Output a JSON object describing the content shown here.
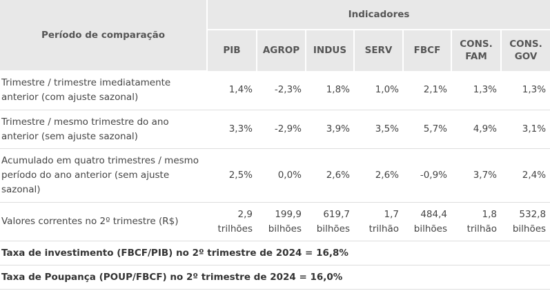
{
  "header": {
    "period_label": "Período de comparação",
    "indicators_label": "Indicadores",
    "columns": [
      [
        "PIB"
      ],
      [
        "AGROP"
      ],
      [
        "INDUS"
      ],
      [
        "SERV"
      ],
      [
        "FBCF"
      ],
      [
        "CONS.",
        "FAM"
      ],
      [
        "CONS.",
        "GOV"
      ]
    ]
  },
  "rows": [
    {
      "label": "Trimestre / trimestre imediatamente anterior (com ajuste sazonal)",
      "values": [
        "1,4%",
        "-2,3%",
        "1,8%",
        "1,0%",
        "2,1%",
        "1,3%",
        "1,3%"
      ]
    },
    {
      "label": "Trimestre / mesmo trimestre do ano anterior (sem ajuste sazonal)",
      "values": [
        "3,3%",
        "-2,9%",
        "3,9%",
        "3,5%",
        "5,7%",
        "4,9%",
        "3,1%"
      ]
    },
    {
      "label": "Acumulado em quatro trimestres / mesmo período do ano anterior (sem ajuste sazonal)",
      "values": [
        "2,5%",
        "0,0%",
        "2,6%",
        "2,6%",
        "-0,9%",
        "3,7%",
        "2,4%"
      ]
    },
    {
      "label": "Valores correntes no 2º trimestre (R$)",
      "values": [
        [
          "2,9",
          "trilhões"
        ],
        [
          "199,9",
          "bilhões"
        ],
        [
          "619,7",
          "bilhões"
        ],
        [
          "1,7",
          "trilhão"
        ],
        [
          "484,4",
          "bilhões"
        ],
        [
          "1,8",
          "trilhão"
        ],
        [
          "532,8",
          "bilhões"
        ]
      ]
    }
  ],
  "footer": {
    "investment_rate": "Taxa de investimento (FBCF/PIB) no 2º trimestre de 2024 = 16,8%",
    "savings_rate": "Taxa de Poupança (POUP/FBCF) no 2º trimestre de 2024 = 16,0%"
  }
}
